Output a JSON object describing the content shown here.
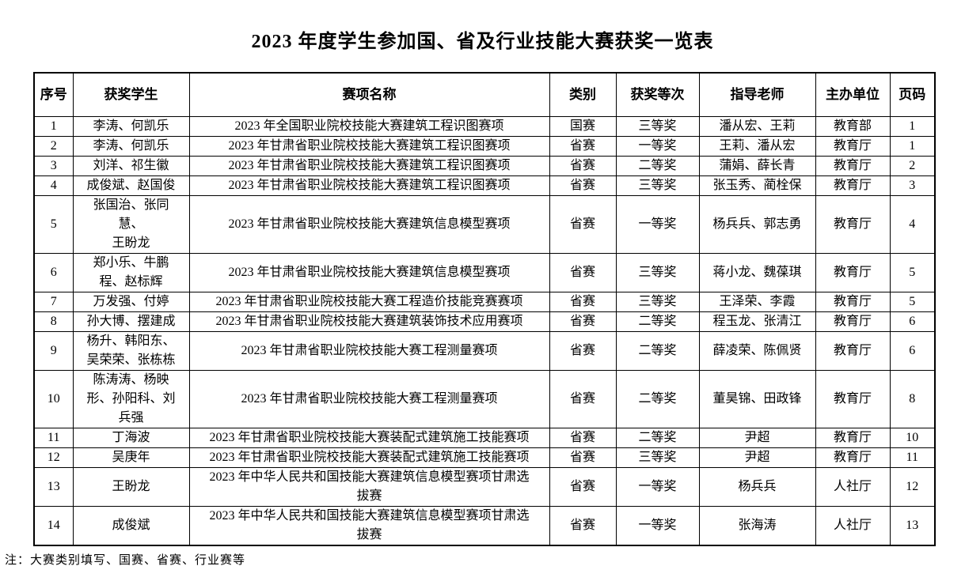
{
  "title": "2023 年度学生参加国、省及行业技能大赛获奖一览表",
  "note": "注：大赛类别填写、国赛、省赛、行业赛等",
  "table": {
    "headers": [
      "序号",
      "获奖学生",
      "赛项名称",
      "类别",
      "获奖等次",
      "指导老师",
      "主办单位",
      "页码"
    ],
    "rows": [
      [
        "1",
        "李涛、何凯乐",
        "2023 年全国职业院校技能大赛建筑工程识图赛项",
        "国赛",
        "三等奖",
        "潘从宏、王莉",
        "教育部",
        "1"
      ],
      [
        "2",
        "李涛、何凯乐",
        "2023 年甘肃省职业院校技能大赛建筑工程识图赛项",
        "省赛",
        "一等奖",
        "王莉、潘从宏",
        "教育厅",
        "1"
      ],
      [
        "3",
        "刘洋、祁生徽",
        "2023 年甘肃省职业院校技能大赛建筑工程识图赛项",
        "省赛",
        "二等奖",
        "蒲娟、薛长青",
        "教育厅",
        "2"
      ],
      [
        "4",
        "成俊斌、赵国俊",
        "2023 年甘肃省职业院校技能大赛建筑工程识图赛项",
        "省赛",
        "三等奖",
        "张玉秀、蔺栓保",
        "教育厅",
        "3"
      ],
      [
        "5",
        "张国治、张同\n慧、\n王盼龙",
        "2023 年甘肃省职业院校技能大赛建筑信息模型赛项",
        "省赛",
        "一等奖",
        "杨兵兵、郭志勇",
        "教育厅",
        "4"
      ],
      [
        "6",
        "郑小乐、牛鹏\n程、赵标辉",
        "2023 年甘肃省职业院校技能大赛建筑信息模型赛项",
        "省赛",
        "三等奖",
        "蒋小龙、魏葆琪",
        "教育厅",
        "5"
      ],
      [
        "7",
        "万发强、付婷",
        "2023 年甘肃省职业院校技能大赛工程造价技能竞赛赛项",
        "省赛",
        "三等奖",
        "王泽荣、李霞",
        "教育厅",
        "5"
      ],
      [
        "8",
        "孙大博、摆建成",
        "2023 年甘肃省职业院校技能大赛建筑装饰技术应用赛项",
        "省赛",
        "二等奖",
        "程玉龙、张清江",
        "教育厅",
        "6"
      ],
      [
        "9",
        "杨升、韩阳东、\n吴荣荣、张栋栋",
        "2023 年甘肃省职业院校技能大赛工程测量赛项",
        "省赛",
        "二等奖",
        "薛凌荣、陈佩贤",
        "教育厅",
        "6"
      ],
      [
        "10",
        "陈涛涛、杨映\n形、孙阳科、刘\n兵强",
        "2023 年甘肃省职业院校技能大赛工程测量赛项",
        "省赛",
        "二等奖",
        "董昊锦、田政锋",
        "教育厅",
        "8"
      ],
      [
        "11",
        "丁海波",
        "2023 年甘肃省职业院校技能大赛装配式建筑施工技能赛项",
        "省赛",
        "二等奖",
        "尹超",
        "教育厅",
        "10"
      ],
      [
        "12",
        "吴庚年",
        "2023 年甘肃省职业院校技能大赛装配式建筑施工技能赛项",
        "省赛",
        "三等奖",
        "尹超",
        "教育厅",
        "11"
      ],
      [
        "13",
        "王盼龙",
        "2023 年中华人民共和国技能大赛建筑信息模型赛项甘肃选\n拔赛",
        "省赛",
        "一等奖",
        "杨兵兵",
        "人社厅",
        "12"
      ],
      [
        "14",
        "成俊斌",
        "2023 年中华人民共和国技能大赛建筑信息模型赛项甘肃选\n拔赛",
        "省赛",
        "一等奖",
        "张海涛",
        "人社厅",
        "13"
      ]
    ]
  }
}
